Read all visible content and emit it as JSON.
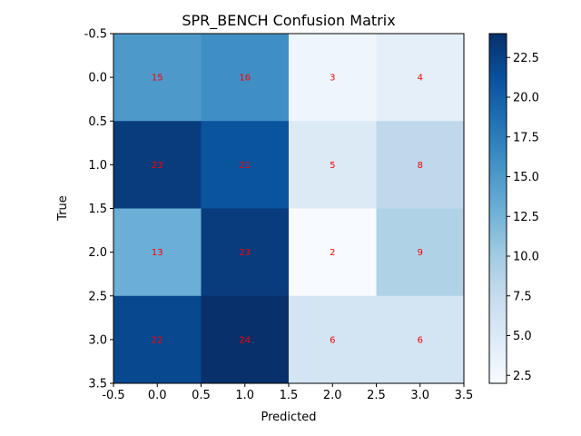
{
  "chart_data": {
    "type": "heatmap",
    "title": "SPR_BENCH Confusion Matrix",
    "xlabel": "Predicted",
    "ylabel": "True",
    "x_categories": [
      "0",
      "1",
      "2",
      "3"
    ],
    "y_categories": [
      "0",
      "1",
      "2",
      "3"
    ],
    "values": [
      [
        15,
        16,
        3,
        4
      ],
      [
        23,
        21,
        5,
        8
      ],
      [
        13,
        23,
        2,
        9
      ],
      [
        22,
        24,
        6,
        6
      ]
    ],
    "xlim": [
      -0.5,
      3.5
    ],
    "ylim": [
      3.5,
      -0.5
    ],
    "x_ticks": [
      "-0.5",
      "0.0",
      "0.5",
      "1.0",
      "1.5",
      "2.0",
      "2.5",
      "3.0",
      "3.5"
    ],
    "y_ticks": [
      "-0.5",
      "0.0",
      "0.5",
      "1.0",
      "1.5",
      "2.0",
      "2.5",
      "3.0",
      "3.5"
    ],
    "colormap": "Blues",
    "value_range": [
      2,
      24
    ],
    "annotation_color": "#ff0000",
    "colorbar_ticks": [
      "2.5",
      "5.0",
      "7.5",
      "10.0",
      "12.5",
      "15.0",
      "17.5",
      "20.0",
      "22.5"
    ],
    "grid": false
  }
}
